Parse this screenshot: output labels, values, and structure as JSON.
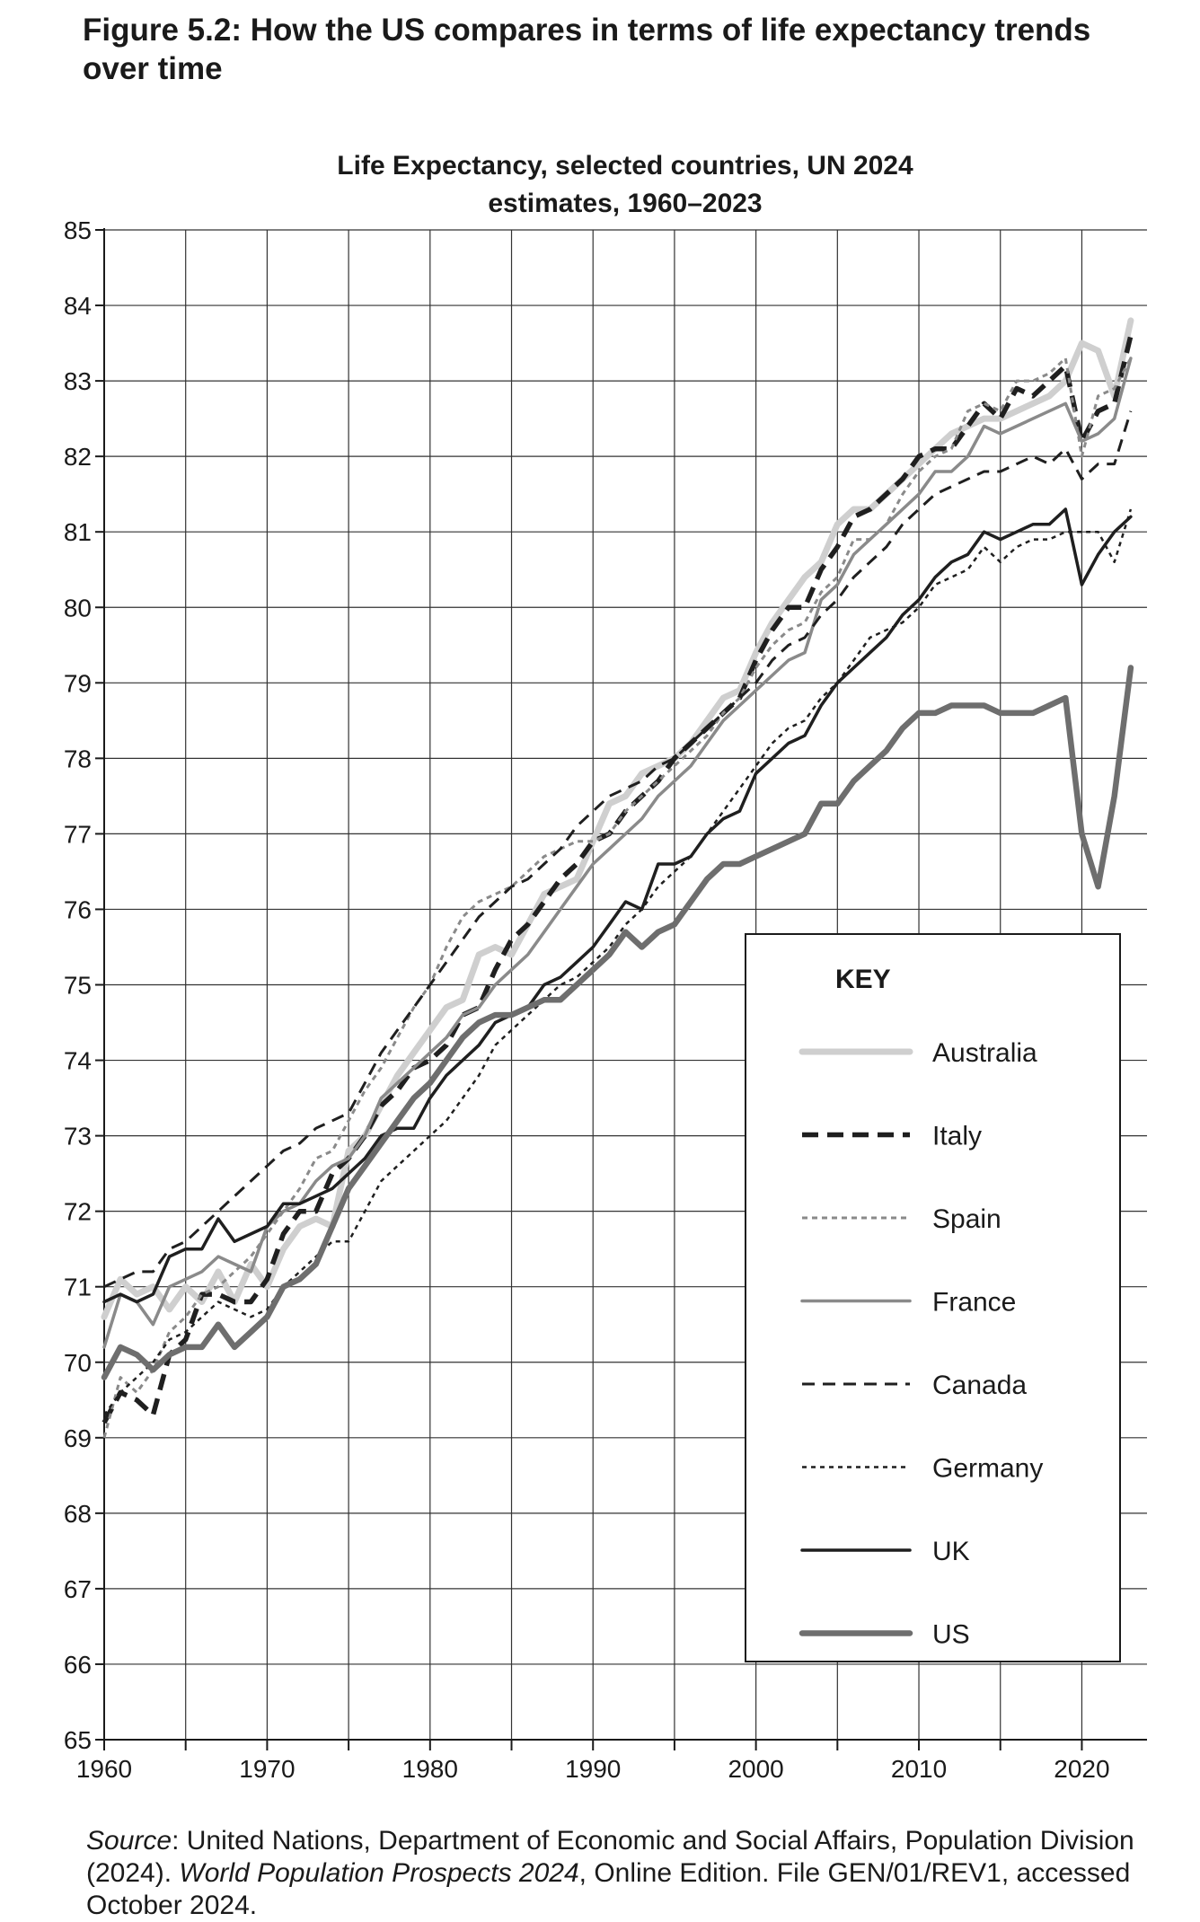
{
  "figure_title": "Figure 5.2: How the US compares in terms of life expectancy trends over time",
  "source": {
    "label": "Source",
    "text1": ": United Nations, Department of Economic and Social Affairs, Population Division (2024). ",
    "italic": "World Population Prospects 2024",
    "text2": ", Online Edition. File GEN/01/REV1, accessed October 2024."
  },
  "chart_data": {
    "type": "line",
    "title": "Life Expectancy, selected countries, UN 2024 estimates, 1960–2023",
    "title_lines": [
      "Life Expectancy, selected countries, UN 2024",
      "estimates, 1960–2023"
    ],
    "xlabel": "",
    "ylabel": "",
    "xlim": [
      1960,
      2024
    ],
    "ylim": [
      65,
      85
    ],
    "x_ticks": [
      1960,
      1970,
      1980,
      1990,
      2000,
      2010,
      2020
    ],
    "y_ticks": [
      65,
      66,
      67,
      68,
      69,
      70,
      71,
      72,
      73,
      74,
      75,
      76,
      77,
      78,
      79,
      80,
      81,
      82,
      83,
      84,
      85
    ],
    "grid": true,
    "legend": {
      "title": "KEY",
      "placement": "right"
    },
    "x": [
      1960,
      1961,
      1962,
      1963,
      1964,
      1965,
      1966,
      1967,
      1968,
      1969,
      1970,
      1971,
      1972,
      1973,
      1974,
      1975,
      1976,
      1977,
      1978,
      1979,
      1980,
      1981,
      1982,
      1983,
      1984,
      1985,
      1986,
      1987,
      1988,
      1989,
      1990,
      1991,
      1992,
      1993,
      1994,
      1995,
      1996,
      1997,
      1998,
      1999,
      2000,
      2001,
      2002,
      2003,
      2004,
      2005,
      2006,
      2007,
      2008,
      2009,
      2010,
      2011,
      2012,
      2013,
      2014,
      2015,
      2016,
      2017,
      2018,
      2019,
      2020,
      2021,
      2022,
      2023
    ],
    "series": [
      {
        "name": "Australia",
        "color": "#cfcfcf",
        "width": 7,
        "dash": "",
        "values": [
          70.6,
          71.1,
          70.9,
          71.0,
          70.7,
          71.0,
          70.8,
          71.2,
          70.8,
          71.3,
          71.0,
          71.5,
          71.8,
          71.9,
          71.8,
          72.8,
          73.0,
          73.4,
          73.8,
          74.1,
          74.4,
          74.7,
          74.8,
          75.4,
          75.5,
          75.4,
          75.8,
          76.2,
          76.3,
          76.4,
          76.9,
          77.4,
          77.5,
          77.8,
          77.9,
          78.0,
          78.2,
          78.5,
          78.8,
          78.9,
          79.4,
          79.8,
          80.1,
          80.4,
          80.6,
          81.1,
          81.3,
          81.3,
          81.5,
          81.7,
          81.9,
          82.1,
          82.3,
          82.4,
          82.5,
          82.5,
          82.6,
          82.7,
          82.8,
          83.0,
          83.5,
          83.4,
          82.8,
          83.8
        ]
      },
      {
        "name": "Italy",
        "color": "#1f1f1f",
        "width": 5.5,
        "dash": "18 10",
        "values": [
          69.2,
          69.6,
          69.5,
          69.3,
          70.1,
          70.3,
          70.9,
          70.9,
          70.8,
          70.8,
          71.1,
          71.7,
          72.0,
          72.0,
          72.5,
          72.7,
          73.0,
          73.4,
          73.6,
          73.9,
          74.0,
          74.2,
          74.6,
          74.7,
          75.2,
          75.6,
          75.8,
          76.1,
          76.4,
          76.6,
          76.9,
          77.0,
          77.3,
          77.5,
          77.7,
          78.0,
          78.2,
          78.4,
          78.6,
          78.8,
          79.3,
          79.7,
          80.0,
          80.0,
          80.5,
          80.8,
          81.2,
          81.3,
          81.5,
          81.7,
          82.0,
          82.1,
          82.1,
          82.4,
          82.7,
          82.5,
          82.9,
          82.8,
          83.0,
          83.2,
          82.2,
          82.6,
          82.7,
          83.6
        ]
      },
      {
        "name": "Spain",
        "color": "#8a8a8a",
        "width": 3,
        "dash": "6 5",
        "values": [
          69.0,
          69.8,
          69.6,
          69.9,
          70.4,
          70.6,
          70.9,
          71.0,
          71.2,
          71.4,
          71.7,
          72.0,
          72.3,
          72.7,
          72.8,
          73.2,
          73.6,
          73.9,
          74.3,
          74.7,
          75.0,
          75.5,
          75.9,
          76.1,
          76.2,
          76.3,
          76.5,
          76.7,
          76.8,
          76.9,
          76.9,
          77.0,
          77.3,
          77.5,
          77.7,
          77.9,
          78.1,
          78.3,
          78.6,
          78.8,
          79.2,
          79.5,
          79.7,
          79.8,
          80.2,
          80.4,
          80.9,
          80.9,
          81.1,
          81.5,
          81.8,
          82.0,
          82.1,
          82.6,
          82.7,
          82.6,
          83.0,
          83.0,
          83.1,
          83.3,
          82.0,
          82.8,
          82.9,
          83.3
        ]
      },
      {
        "name": "France",
        "color": "#8a8a8a",
        "width": 3.5,
        "dash": "",
        "values": [
          70.2,
          70.9,
          70.8,
          70.5,
          71.0,
          71.1,
          71.2,
          71.4,
          71.3,
          71.2,
          71.8,
          72.0,
          72.1,
          72.4,
          72.6,
          72.7,
          73.0,
          73.5,
          73.7,
          73.9,
          74.1,
          74.3,
          74.6,
          74.7,
          75.0,
          75.2,
          75.4,
          75.7,
          76.0,
          76.3,
          76.6,
          76.8,
          77.0,
          77.2,
          77.5,
          77.7,
          77.9,
          78.2,
          78.5,
          78.7,
          78.9,
          79.1,
          79.3,
          79.4,
          80.1,
          80.3,
          80.7,
          80.9,
          81.1,
          81.3,
          81.5,
          81.8,
          81.8,
          82.0,
          82.4,
          82.3,
          82.4,
          82.5,
          82.6,
          82.7,
          82.2,
          82.3,
          82.5,
          83.3
        ]
      },
      {
        "name": "Canada",
        "color": "#1f1f1f",
        "width": 3,
        "dash": "14 9",
        "values": [
          71.0,
          71.1,
          71.2,
          71.2,
          71.5,
          71.6,
          71.8,
          72.0,
          72.2,
          72.4,
          72.6,
          72.8,
          72.9,
          73.1,
          73.2,
          73.3,
          73.7,
          74.1,
          74.4,
          74.7,
          75.0,
          75.3,
          75.6,
          75.9,
          76.1,
          76.3,
          76.4,
          76.6,
          76.8,
          77.1,
          77.3,
          77.5,
          77.6,
          77.7,
          77.9,
          78.0,
          78.2,
          78.4,
          78.6,
          78.8,
          79.0,
          79.3,
          79.5,
          79.6,
          79.9,
          80.1,
          80.4,
          80.6,
          80.8,
          81.1,
          81.3,
          81.5,
          81.6,
          81.7,
          81.8,
          81.8,
          81.9,
          82.0,
          81.9,
          82.1,
          81.7,
          81.9,
          81.9,
          82.6
        ]
      },
      {
        "name": "Germany",
        "color": "#1f1f1f",
        "width": 2.5,
        "dash": "5 5",
        "values": [
          69.3,
          69.6,
          69.8,
          70.0,
          70.3,
          70.4,
          70.6,
          70.8,
          70.7,
          70.6,
          70.7,
          71.0,
          71.2,
          71.4,
          71.6,
          71.6,
          72.0,
          72.4,
          72.6,
          72.8,
          73.0,
          73.2,
          73.5,
          73.8,
          74.2,
          74.4,
          74.6,
          74.8,
          75.0,
          75.1,
          75.3,
          75.5,
          75.8,
          76.0,
          76.3,
          76.5,
          76.7,
          77.0,
          77.3,
          77.6,
          77.9,
          78.2,
          78.4,
          78.5,
          78.8,
          79.0,
          79.3,
          79.6,
          79.7,
          79.8,
          80.0,
          80.3,
          80.4,
          80.5,
          80.8,
          80.6,
          80.8,
          80.9,
          80.9,
          81.0,
          81.0,
          81.0,
          80.6,
          81.3
        ]
      },
      {
        "name": "UK",
        "color": "#1f1f1f",
        "width": 3.5,
        "dash": "",
        "values": [
          70.8,
          70.9,
          70.8,
          70.9,
          71.4,
          71.5,
          71.5,
          71.9,
          71.6,
          71.7,
          71.8,
          72.1,
          72.1,
          72.2,
          72.3,
          72.5,
          72.7,
          73.0,
          73.1,
          73.1,
          73.5,
          73.8,
          74.0,
          74.2,
          74.5,
          74.6,
          74.7,
          75.0,
          75.1,
          75.3,
          75.5,
          75.8,
          76.1,
          76.0,
          76.6,
          76.6,
          76.7,
          77.0,
          77.2,
          77.3,
          77.8,
          78.0,
          78.2,
          78.3,
          78.7,
          79.0,
          79.2,
          79.4,
          79.6,
          79.9,
          80.1,
          80.4,
          80.6,
          80.7,
          81.0,
          80.9,
          81.0,
          81.1,
          81.1,
          81.3,
          80.3,
          80.7,
          81.0,
          81.2
        ]
      },
      {
        "name": "US",
        "color": "#6e6e6e",
        "width": 6.5,
        "dash": "",
        "values": [
          69.8,
          70.2,
          70.1,
          69.9,
          70.1,
          70.2,
          70.2,
          70.5,
          70.2,
          70.4,
          70.6,
          71.0,
          71.1,
          71.3,
          71.8,
          72.3,
          72.6,
          72.9,
          73.2,
          73.5,
          73.7,
          74.0,
          74.3,
          74.5,
          74.6,
          74.6,
          74.7,
          74.8,
          74.8,
          75.0,
          75.2,
          75.4,
          75.7,
          75.5,
          75.7,
          75.8,
          76.1,
          76.4,
          76.6,
          76.6,
          76.7,
          76.8,
          76.9,
          77.0,
          77.4,
          77.4,
          77.7,
          77.9,
          78.1,
          78.4,
          78.6,
          78.6,
          78.7,
          78.7,
          78.7,
          78.6,
          78.6,
          78.6,
          78.7,
          78.8,
          77.0,
          76.3,
          77.5,
          79.2
        ]
      }
    ]
  }
}
